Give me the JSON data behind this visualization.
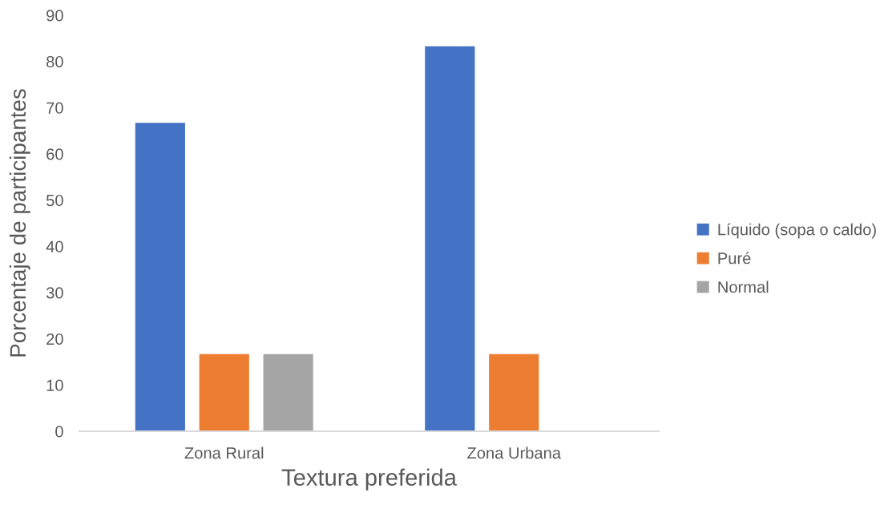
{
  "chart_data": {
    "type": "bar",
    "xlabel": "Textura preferida",
    "ylabel": "Porcentaje de participantes",
    "categories": [
      "Zona Rural",
      "Zona Urbana"
    ],
    "series": [
      {
        "name": "Líquido (sopa o caldo)",
        "color": "#4472c4",
        "values": [
          66.7,
          83.3
        ]
      },
      {
        "name": "Puré",
        "color": "#ed7d31",
        "values": [
          16.7,
          16.7
        ]
      },
      {
        "name": "Normal",
        "color": "#a5a5a5",
        "values": [
          16.7,
          0
        ]
      }
    ],
    "ylim": [
      0,
      90
    ],
    "yticks": [
      0,
      10,
      20,
      30,
      40,
      50,
      60,
      70,
      80,
      90
    ],
    "legend": "right"
  }
}
